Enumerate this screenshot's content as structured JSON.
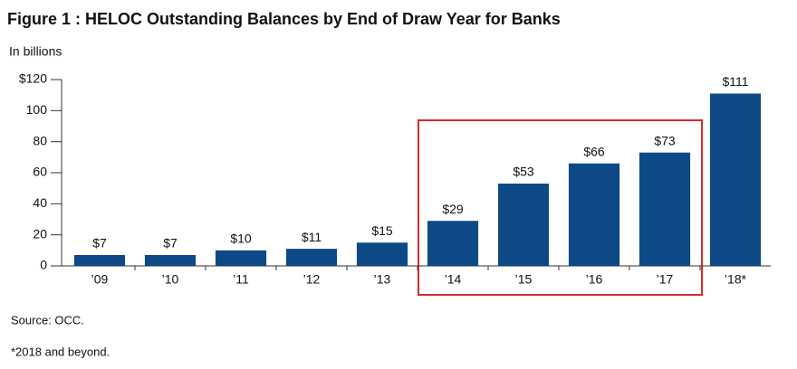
{
  "chart_data": {
    "type": "bar",
    "title": "Figure 1  : HELOC Outstanding Balances by End of Draw Year for Banks",
    "y_axis_label": "In billions",
    "categories": [
      "’09",
      "’10",
      "’11",
      "’12",
      "’13",
      "’14",
      "’15",
      "’16",
      "’17",
      "’18*"
    ],
    "values": [
      7,
      7,
      10,
      11,
      15,
      29,
      53,
      66,
      73,
      111
    ],
    "value_labels": [
      "$7",
      "$7",
      "$10",
      "$11",
      "$15",
      "$29",
      "$53",
      "$66",
      "$73",
      "$111"
    ],
    "color": "#0d4a85",
    "ylim": [
      0,
      120
    ],
    "yticks": [
      {
        "value": 120,
        "label": "$120"
      },
      100,
      80,
      60,
      40,
      20,
      0
    ],
    "grid": false,
    "source": "Source: OCC.",
    "footnote": "*2018 and beyond."
  }
}
